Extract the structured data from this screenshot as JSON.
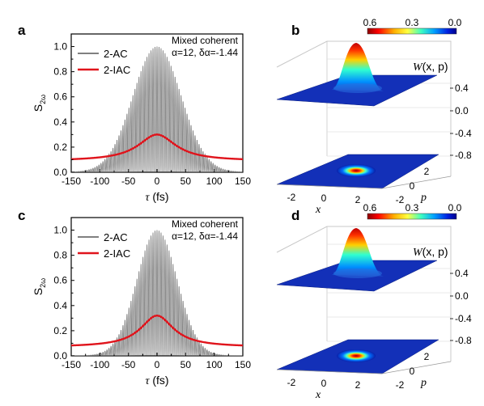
{
  "figure": {
    "panel_labels": [
      "a",
      "b",
      "c",
      "d"
    ]
  },
  "colors": {
    "ac": "#808080",
    "iac": "#e0141c",
    "axes": "#000000"
  },
  "chart_data": [
    {
      "panel": "a",
      "type": "line",
      "xlabel": "τ (fs)",
      "ylabel": "S2ω",
      "xlim": [
        -150,
        150
      ],
      "ylim": [
        0.0,
        1.1
      ],
      "xticks": [
        "-150",
        "-100",
        "-50",
        "0",
        "50",
        "100",
        "150"
      ],
      "yticks": [
        "0.0",
        "0.2",
        "0.4",
        "0.6",
        "0.8",
        "1.0"
      ],
      "annotation_title": "Mixed coherent",
      "annotation_params": "α=12, δα=-1.44",
      "legend_position": "upper-left",
      "series": [
        {
          "name": "2-AC",
          "kind": "fringe",
          "peak": 1.0,
          "baseline": 0.0,
          "fringe_period_fs": 3.5,
          "envelope_width_fs": 60
        },
        {
          "name": "2-IAC",
          "kind": "smooth",
          "peak": 0.3,
          "baseline": 0.09,
          "envelope_width_fs": 40
        }
      ]
    },
    {
      "panel": "b",
      "type": "surface3d",
      "zlabel": "W(x, p)",
      "xlabel": "x",
      "ylabel": "p",
      "zticks": [
        "0.4",
        "0.0",
        "-0.4",
        "-0.8"
      ],
      "xticks": [
        "-2",
        "0",
        "2"
      ],
      "pticks": [
        "2",
        "0",
        "-2"
      ],
      "colorbar": {
        "min": "0.6",
        "mid": "0.3",
        "max": "0.0"
      },
      "peak_value": 0.6
    },
    {
      "panel": "c",
      "type": "line",
      "xlabel": "τ (fs)",
      "ylabel": "S2ω",
      "xlim": [
        -150,
        150
      ],
      "ylim": [
        0.0,
        1.1
      ],
      "xticks": [
        "-150",
        "-100",
        "-50",
        "0",
        "50",
        "100",
        "150"
      ],
      "yticks": [
        "0.0",
        "0.2",
        "0.4",
        "0.6",
        "0.8",
        "1.0"
      ],
      "annotation_title": "Mixed coherent",
      "annotation_params": "α=12, δα=-1.44",
      "legend_position": "upper-left",
      "series": [
        {
          "name": "2-AC",
          "kind": "fringe",
          "peak": 1.0,
          "baseline": 0.0,
          "fringe_period_fs": 3.5,
          "envelope_width_fs": 50
        },
        {
          "name": "2-IAC",
          "kind": "smooth",
          "peak": 0.32,
          "baseline": 0.07,
          "envelope_width_fs": 35
        }
      ]
    },
    {
      "panel": "d",
      "type": "surface3d",
      "zlabel": "W(x, p)",
      "xlabel": "x",
      "ylabel": "p",
      "zticks": [
        "0.4",
        "0.0",
        "-0.4",
        "-0.8"
      ],
      "xticks": [
        "-2",
        "0",
        "2"
      ],
      "pticks": [
        "2",
        "0",
        "-2"
      ],
      "colorbar": {
        "min": "0.6",
        "mid": "0.3",
        "max": "0.0"
      },
      "peak_value": 0.6
    }
  ]
}
